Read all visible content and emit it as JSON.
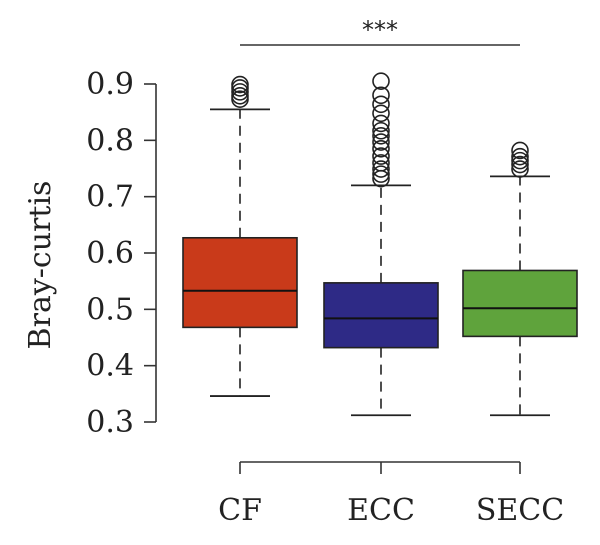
{
  "chart_data": {
    "type": "box",
    "ylabel": "Bray-curtis",
    "ylim": [
      0.3,
      0.9
    ],
    "yticks": [
      0.3,
      0.4,
      0.5,
      0.6,
      0.7,
      0.8,
      0.9
    ],
    "ytick_labels": [
      "0.3",
      "0.4",
      "0.5",
      "0.6",
      "0.7",
      "0.8",
      "0.9"
    ],
    "categories": [
      "CF",
      "ECC",
      "SECC"
    ],
    "boxes": [
      {
        "name": "CF",
        "color": "#c93a1a",
        "whisker_low": 0.346,
        "q1": 0.468,
        "median": 0.533,
        "q3": 0.627,
        "whisker_high": 0.855,
        "outliers": [
          0.873,
          0.879,
          0.886,
          0.893,
          0.899
        ]
      },
      {
        "name": "ECC",
        "color": "#2e2a86",
        "whisker_low": 0.312,
        "q1": 0.432,
        "median": 0.484,
        "q3": 0.547,
        "whisker_high": 0.72,
        "outliers": [
          0.732,
          0.74,
          0.749,
          0.76,
          0.772,
          0.785,
          0.797,
          0.808,
          0.817,
          0.83,
          0.848,
          0.864,
          0.88,
          0.905
        ]
      },
      {
        "name": "SECC",
        "color": "#5fa33c",
        "whisker_low": 0.312,
        "q1": 0.452,
        "median": 0.502,
        "q3": 0.569,
        "whisker_high": 0.736,
        "outliers": [
          0.749,
          0.757,
          0.764,
          0.771,
          0.782
        ]
      }
    ],
    "significance": {
      "from": "CF",
      "to": "SECC",
      "label": "***"
    }
  }
}
